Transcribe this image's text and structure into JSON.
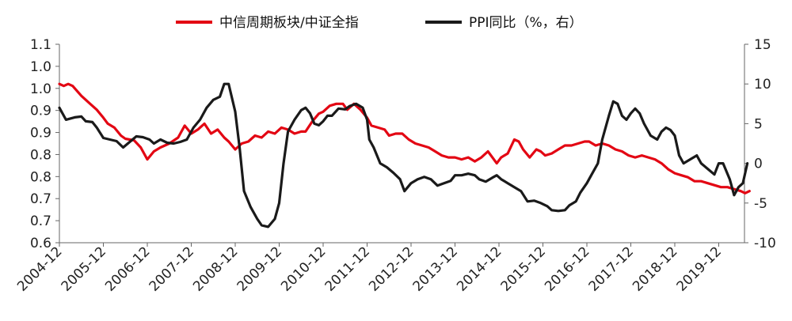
{
  "chart_data": {
    "type": "line",
    "title": "",
    "xlabel": "",
    "ylabel": "",
    "grid": false,
    "legend_position": "top",
    "x_categories": [
      "2004-12",
      "2005-12",
      "2006-12",
      "2007-12",
      "2008-12",
      "2009-12",
      "2010-12",
      "2011-12",
      "2012-12",
      "2013-12",
      "2014-12",
      "2015-12",
      "2016-12",
      "2017-12",
      "2018-12",
      "2019-12"
    ],
    "y_left": {
      "ylim": [
        0.6,
        1.1
      ],
      "ticks": [
        "0.6",
        "0.7",
        "0.7",
        "0.8",
        "0.8",
        "0.9",
        "0.9",
        "1.0",
        "1.0",
        "1.1"
      ]
    },
    "y_right": {
      "ylim": [
        -10,
        15
      ],
      "ticks": [
        "-10",
        "-5",
        "0",
        "5",
        "10",
        "15"
      ]
    },
    "series": [
      {
        "name": "中信周期板块/中证全指",
        "color": "#e30613",
        "axis": "left",
        "points": [
          [
            0,
            1.0
          ],
          [
            0.1,
            0.995
          ],
          [
            0.2,
            1.0
          ],
          [
            0.3,
            0.995
          ],
          [
            0.5,
            0.97
          ],
          [
            0.7,
            0.95
          ],
          [
            0.85,
            0.935
          ],
          [
            1.0,
            0.915
          ],
          [
            1.1,
            0.9
          ],
          [
            1.25,
            0.89
          ],
          [
            1.4,
            0.87
          ],
          [
            1.5,
            0.862
          ],
          [
            1.7,
            0.858
          ],
          [
            1.85,
            0.84
          ],
          [
            2.0,
            0.81
          ],
          [
            2.15,
            0.83
          ],
          [
            2.3,
            0.84
          ],
          [
            2.5,
            0.85
          ],
          [
            2.7,
            0.865
          ],
          [
            2.85,
            0.895
          ],
          [
            3.0,
            0.875
          ],
          [
            3.15,
            0.885
          ],
          [
            3.3,
            0.9
          ],
          [
            3.45,
            0.875
          ],
          [
            3.6,
            0.885
          ],
          [
            3.75,
            0.865
          ],
          [
            3.85,
            0.855
          ],
          [
            4.0,
            0.835
          ],
          [
            4.15,
            0.85
          ],
          [
            4.3,
            0.855
          ],
          [
            4.45,
            0.87
          ],
          [
            4.6,
            0.865
          ],
          [
            4.75,
            0.88
          ],
          [
            4.9,
            0.875
          ],
          [
            5.05,
            0.89
          ],
          [
            5.2,
            0.885
          ],
          [
            5.35,
            0.875
          ],
          [
            5.5,
            0.88
          ],
          [
            5.6,
            0.88
          ],
          [
            5.75,
            0.905
          ],
          [
            5.9,
            0.925
          ],
          [
            6.0,
            0.93
          ],
          [
            6.15,
            0.945
          ],
          [
            6.3,
            0.95
          ],
          [
            6.45,
            0.95
          ],
          [
            6.55,
            0.935
          ],
          [
            6.7,
            0.95
          ],
          [
            6.85,
            0.935
          ],
          [
            7.0,
            0.915
          ],
          [
            7.1,
            0.895
          ],
          [
            7.25,
            0.89
          ],
          [
            7.4,
            0.885
          ],
          [
            7.5,
            0.87
          ],
          [
            7.65,
            0.875
          ],
          [
            7.8,
            0.875
          ],
          [
            7.95,
            0.86
          ],
          [
            8.1,
            0.85
          ],
          [
            8.25,
            0.845
          ],
          [
            8.4,
            0.84
          ],
          [
            8.55,
            0.83
          ],
          [
            8.7,
            0.82
          ],
          [
            8.85,
            0.815
          ],
          [
            9.0,
            0.815
          ],
          [
            9.15,
            0.81
          ],
          [
            9.3,
            0.815
          ],
          [
            9.45,
            0.805
          ],
          [
            9.6,
            0.815
          ],
          [
            9.75,
            0.83
          ],
          [
            9.85,
            0.815
          ],
          [
            9.95,
            0.8
          ],
          [
            10.05,
            0.815
          ],
          [
            10.2,
            0.825
          ],
          [
            10.35,
            0.86
          ],
          [
            10.45,
            0.855
          ],
          [
            10.55,
            0.835
          ],
          [
            10.7,
            0.815
          ],
          [
            10.85,
            0.835
          ],
          [
            10.95,
            0.83
          ],
          [
            11.05,
            0.82
          ],
          [
            11.2,
            0.825
          ],
          [
            11.35,
            0.835
          ],
          [
            11.5,
            0.845
          ],
          [
            11.65,
            0.845
          ],
          [
            11.8,
            0.85
          ],
          [
            11.95,
            0.855
          ],
          [
            12.05,
            0.855
          ],
          [
            12.2,
            0.845
          ],
          [
            12.35,
            0.85
          ],
          [
            12.5,
            0.845
          ],
          [
            12.65,
            0.835
          ],
          [
            12.8,
            0.83
          ],
          [
            12.95,
            0.82
          ],
          [
            13.1,
            0.815
          ],
          [
            13.25,
            0.82
          ],
          [
            13.4,
            0.815
          ],
          [
            13.55,
            0.81
          ],
          [
            13.7,
            0.8
          ],
          [
            13.85,
            0.785
          ],
          [
            14.0,
            0.775
          ],
          [
            14.15,
            0.77
          ],
          [
            14.3,
            0.765
          ],
          [
            14.45,
            0.755
          ],
          [
            14.6,
            0.755
          ],
          [
            14.75,
            0.75
          ],
          [
            14.9,
            0.745
          ],
          [
            15.05,
            0.74
          ],
          [
            15.2,
            0.74
          ],
          [
            15.35,
            0.735
          ],
          [
            15.5,
            0.73
          ],
          [
            15.6,
            0.725
          ],
          [
            15.7,
            0.73
          ]
        ]
      },
      {
        "name": "PPI同比（%，右）",
        "color": "#1a1a1a",
        "axis": "right",
        "points": [
          [
            0,
            7.0
          ],
          [
            0.15,
            5.5
          ],
          [
            0.35,
            5.8
          ],
          [
            0.5,
            5.9
          ],
          [
            0.6,
            5.3
          ],
          [
            0.75,
            5.2
          ],
          [
            0.85,
            4.5
          ],
          [
            1.0,
            3.2
          ],
          [
            1.15,
            3.0
          ],
          [
            1.3,
            2.8
          ],
          [
            1.45,
            2.0
          ],
          [
            1.6,
            2.7
          ],
          [
            1.75,
            3.4
          ],
          [
            1.9,
            3.3
          ],
          [
            2.05,
            3.0
          ],
          [
            2.15,
            2.5
          ],
          [
            2.3,
            3.0
          ],
          [
            2.45,
            2.6
          ],
          [
            2.6,
            2.5
          ],
          [
            2.75,
            2.7
          ],
          [
            2.9,
            3.0
          ],
          [
            3.05,
            4.5
          ],
          [
            3.2,
            5.5
          ],
          [
            3.35,
            7.0
          ],
          [
            3.5,
            8.0
          ],
          [
            3.65,
            8.4
          ],
          [
            3.75,
            10.0
          ],
          [
            3.85,
            10.0
          ],
          [
            4.0,
            6.5
          ],
          [
            4.1,
            2.0
          ],
          [
            4.2,
            -3.5
          ],
          [
            4.35,
            -5.5
          ],
          [
            4.5,
            -7.0
          ],
          [
            4.6,
            -7.8
          ],
          [
            4.75,
            -8.0
          ],
          [
            4.9,
            -7.0
          ],
          [
            5.0,
            -5.0
          ],
          [
            5.1,
            0.0
          ],
          [
            5.2,
            4.0
          ],
          [
            5.35,
            5.5
          ],
          [
            5.5,
            6.7
          ],
          [
            5.6,
            7.0
          ],
          [
            5.7,
            6.3
          ],
          [
            5.8,
            5.0
          ],
          [
            5.9,
            4.8
          ],
          [
            6.0,
            5.3
          ],
          [
            6.1,
            6.0
          ],
          [
            6.2,
            6.0
          ],
          [
            6.35,
            6.9
          ],
          [
            6.5,
            6.8
          ],
          [
            6.6,
            7.2
          ],
          [
            6.75,
            7.5
          ],
          [
            6.9,
            7.0
          ],
          [
            7.0,
            5.5
          ],
          [
            7.05,
            3.0
          ],
          [
            7.15,
            2.0
          ],
          [
            7.3,
            0.0
          ],
          [
            7.45,
            -0.5
          ],
          [
            7.6,
            -1.2
          ],
          [
            7.75,
            -2.0
          ],
          [
            7.85,
            -3.5
          ],
          [
            8.0,
            -2.5
          ],
          [
            8.15,
            -2.0
          ],
          [
            8.3,
            -1.7
          ],
          [
            8.45,
            -2.0
          ],
          [
            8.6,
            -2.8
          ],
          [
            8.75,
            -2.5
          ],
          [
            8.9,
            -2.2
          ],
          [
            9.0,
            -1.5
          ],
          [
            9.15,
            -1.5
          ],
          [
            9.3,
            -1.3
          ],
          [
            9.45,
            -1.5
          ],
          [
            9.55,
            -2.0
          ],
          [
            9.7,
            -2.3
          ],
          [
            9.85,
            -1.8
          ],
          [
            9.95,
            -1.5
          ],
          [
            10.05,
            -2.0
          ],
          [
            10.2,
            -2.5
          ],
          [
            10.35,
            -3.0
          ],
          [
            10.5,
            -3.5
          ],
          [
            10.65,
            -4.8
          ],
          [
            10.8,
            -4.7
          ],
          [
            10.95,
            -5.0
          ],
          [
            11.1,
            -5.4
          ],
          [
            11.2,
            -5.9
          ],
          [
            11.35,
            -6.0
          ],
          [
            11.5,
            -5.9
          ],
          [
            11.6,
            -5.3
          ],
          [
            11.75,
            -4.8
          ],
          [
            11.85,
            -3.7
          ],
          [
            12.0,
            -2.5
          ],
          [
            12.1,
            -1.5
          ],
          [
            12.25,
            0.0
          ],
          [
            12.35,
            3.0
          ],
          [
            12.5,
            6.0
          ],
          [
            12.6,
            7.8
          ],
          [
            12.7,
            7.5
          ],
          [
            12.8,
            6.0
          ],
          [
            12.9,
            5.5
          ],
          [
            13.0,
            6.3
          ],
          [
            13.1,
            6.9
          ],
          [
            13.2,
            6.3
          ],
          [
            13.3,
            5.0
          ],
          [
            13.45,
            3.5
          ],
          [
            13.6,
            3.0
          ],
          [
            13.7,
            4.0
          ],
          [
            13.8,
            4.5
          ],
          [
            13.9,
            4.2
          ],
          [
            14.0,
            3.5
          ],
          [
            14.1,
            1.0
          ],
          [
            14.2,
            0.0
          ],
          [
            14.35,
            0.5
          ],
          [
            14.5,
            1.0
          ],
          [
            14.6,
            0.0
          ],
          [
            14.75,
            -0.7
          ],
          [
            14.9,
            -1.4
          ],
          [
            15.0,
            0.0
          ],
          [
            15.1,
            0.0
          ],
          [
            15.25,
            -2.0
          ],
          [
            15.35,
            -4.0
          ],
          [
            15.45,
            -3.0
          ],
          [
            15.55,
            -2.5
          ],
          [
            15.65,
            0.0
          ]
        ]
      }
    ]
  }
}
